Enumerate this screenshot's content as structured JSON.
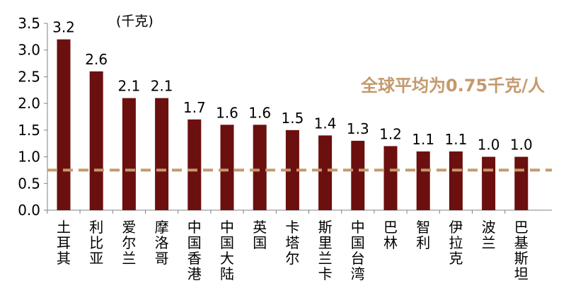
{
  "chart_data": {
    "type": "bar",
    "unit_label": "(千克)",
    "categories": [
      "土耳其",
      "利比亚",
      "爱尔兰",
      "摩洛哥",
      "中国香港",
      "中国大陆",
      "英国",
      "卡塔尔",
      "斯里兰卡",
      "中国台湾",
      "巴林",
      "智利",
      "伊拉克",
      "波兰",
      "巴基斯坦"
    ],
    "values": [
      3.2,
      2.6,
      2.1,
      2.1,
      1.7,
      1.6,
      1.6,
      1.5,
      1.4,
      1.3,
      1.2,
      1.1,
      1.1,
      1.0,
      1.0
    ],
    "value_labels": [
      "3.2",
      "2.6",
      "2.1",
      "2.1",
      "1.7",
      "1.6",
      "1.6",
      "1.5",
      "1.4",
      "1.3",
      "1.2",
      "1.1",
      "1.1",
      "1.0",
      "1.0"
    ],
    "ylim": [
      0,
      3.5
    ],
    "yticks": [
      "0.0",
      "0.5",
      "1.0",
      "1.5",
      "2.0",
      "2.5",
      "3.0",
      "3.5"
    ],
    "grid": false,
    "reference_line": {
      "value": 0.75,
      "label": "全球平均为0.75千克/人",
      "style": "dashed"
    },
    "colors": {
      "bar": "#6b0f0f",
      "reference": "#c49a6c",
      "axis": "#808080"
    }
  }
}
